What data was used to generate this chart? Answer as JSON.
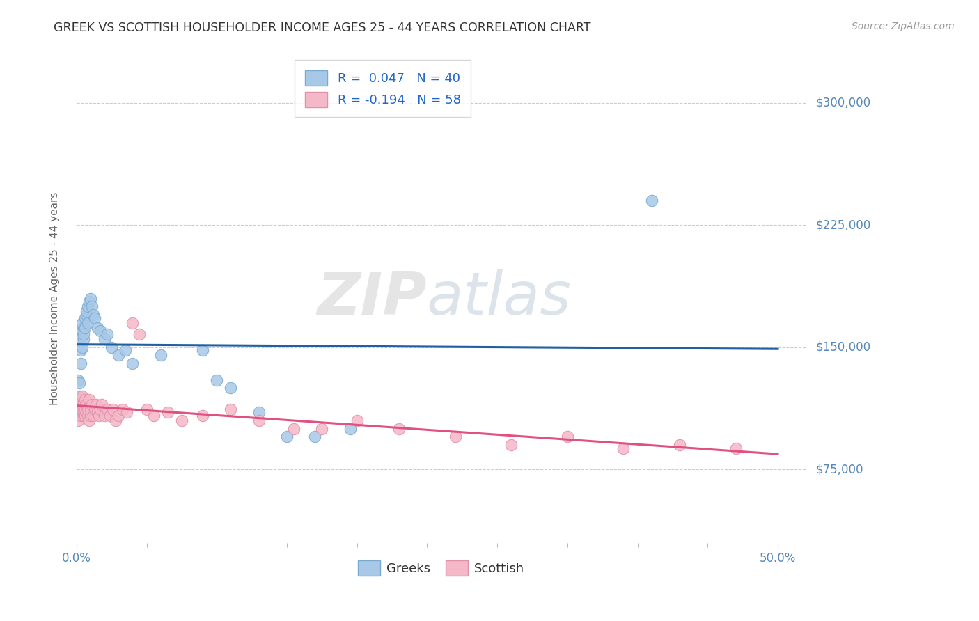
{
  "title": "GREEK VS SCOTTISH HOUSEHOLDER INCOME AGES 25 - 44 YEARS CORRELATION CHART",
  "source": "Source: ZipAtlas.com",
  "ylabel": "Householder Income Ages 25 - 44 years",
  "yticks": [
    75000,
    150000,
    225000,
    300000
  ],
  "ytick_labels": [
    "$75,000",
    "$150,000",
    "$225,000",
    "$300,000"
  ],
  "xlim": [
    0.0,
    0.52
  ],
  "ylim": [
    30000,
    330000
  ],
  "greek_color": "#a8c8e8",
  "scottish_color": "#f5b8c8",
  "greek_line_color": "#2060a0",
  "scottish_line_color": "#e05080",
  "greek_edge_color": "#7aaad0",
  "scottish_edge_color": "#e090a8",
  "watermark_zip": "ZIP",
  "watermark_atlas": "atlas",
  "background_color": "#ffffff",
  "grid_color": "#cccccc",
  "title_color": "#333333",
  "axis_label_color": "#5588bb",
  "legend_r1": "R =  0.047   N = 40",
  "legend_r2": "R = -0.194   N = 58",
  "legend_color_r": "#2266cc",
  "bottom_legend_labels": [
    "Greeks",
    "Scottish"
  ],
  "greek_x": [
    0.001,
    0.002,
    0.002,
    0.003,
    0.003,
    0.003,
    0.004,
    0.004,
    0.004,
    0.005,
    0.005,
    0.005,
    0.006,
    0.006,
    0.007,
    0.007,
    0.008,
    0.008,
    0.009,
    0.01,
    0.011,
    0.012,
    0.013,
    0.015,
    0.017,
    0.02,
    0.022,
    0.025,
    0.03,
    0.035,
    0.04,
    0.06,
    0.09,
    0.1,
    0.11,
    0.13,
    0.15,
    0.17,
    0.195,
    0.41
  ],
  "greek_y": [
    130000,
    120000,
    128000,
    140000,
    148000,
    155000,
    150000,
    160000,
    165000,
    162000,
    155000,
    158000,
    162000,
    168000,
    170000,
    172000,
    165000,
    175000,
    178000,
    180000,
    175000,
    170000,
    168000,
    162000,
    160000,
    155000,
    158000,
    150000,
    145000,
    148000,
    140000,
    145000,
    148000,
    130000,
    125000,
    110000,
    95000,
    95000,
    100000,
    240000
  ],
  "scottish_x": [
    0.001,
    0.002,
    0.002,
    0.003,
    0.003,
    0.003,
    0.004,
    0.004,
    0.004,
    0.005,
    0.005,
    0.005,
    0.006,
    0.006,
    0.006,
    0.007,
    0.007,
    0.008,
    0.008,
    0.009,
    0.009,
    0.01,
    0.01,
    0.011,
    0.012,
    0.013,
    0.014,
    0.015,
    0.016,
    0.017,
    0.018,
    0.02,
    0.022,
    0.024,
    0.026,
    0.028,
    0.03,
    0.033,
    0.036,
    0.04,
    0.045,
    0.05,
    0.055,
    0.065,
    0.075,
    0.09,
    0.11,
    0.13,
    0.155,
    0.175,
    0.2,
    0.23,
    0.27,
    0.31,
    0.35,
    0.39,
    0.43,
    0.47
  ],
  "scottish_y": [
    105000,
    110000,
    115000,
    108000,
    112000,
    118000,
    115000,
    120000,
    112000,
    108000,
    115000,
    112000,
    118000,
    108000,
    112000,
    115000,
    110000,
    108000,
    112000,
    105000,
    118000,
    108000,
    112000,
    115000,
    108000,
    112000,
    115000,
    110000,
    108000,
    112000,
    115000,
    108000,
    112000,
    108000,
    112000,
    105000,
    108000,
    112000,
    110000,
    165000,
    158000,
    112000,
    108000,
    110000,
    105000,
    108000,
    112000,
    105000,
    100000,
    100000,
    105000,
    100000,
    95000,
    90000,
    95000,
    88000,
    90000,
    88000
  ]
}
